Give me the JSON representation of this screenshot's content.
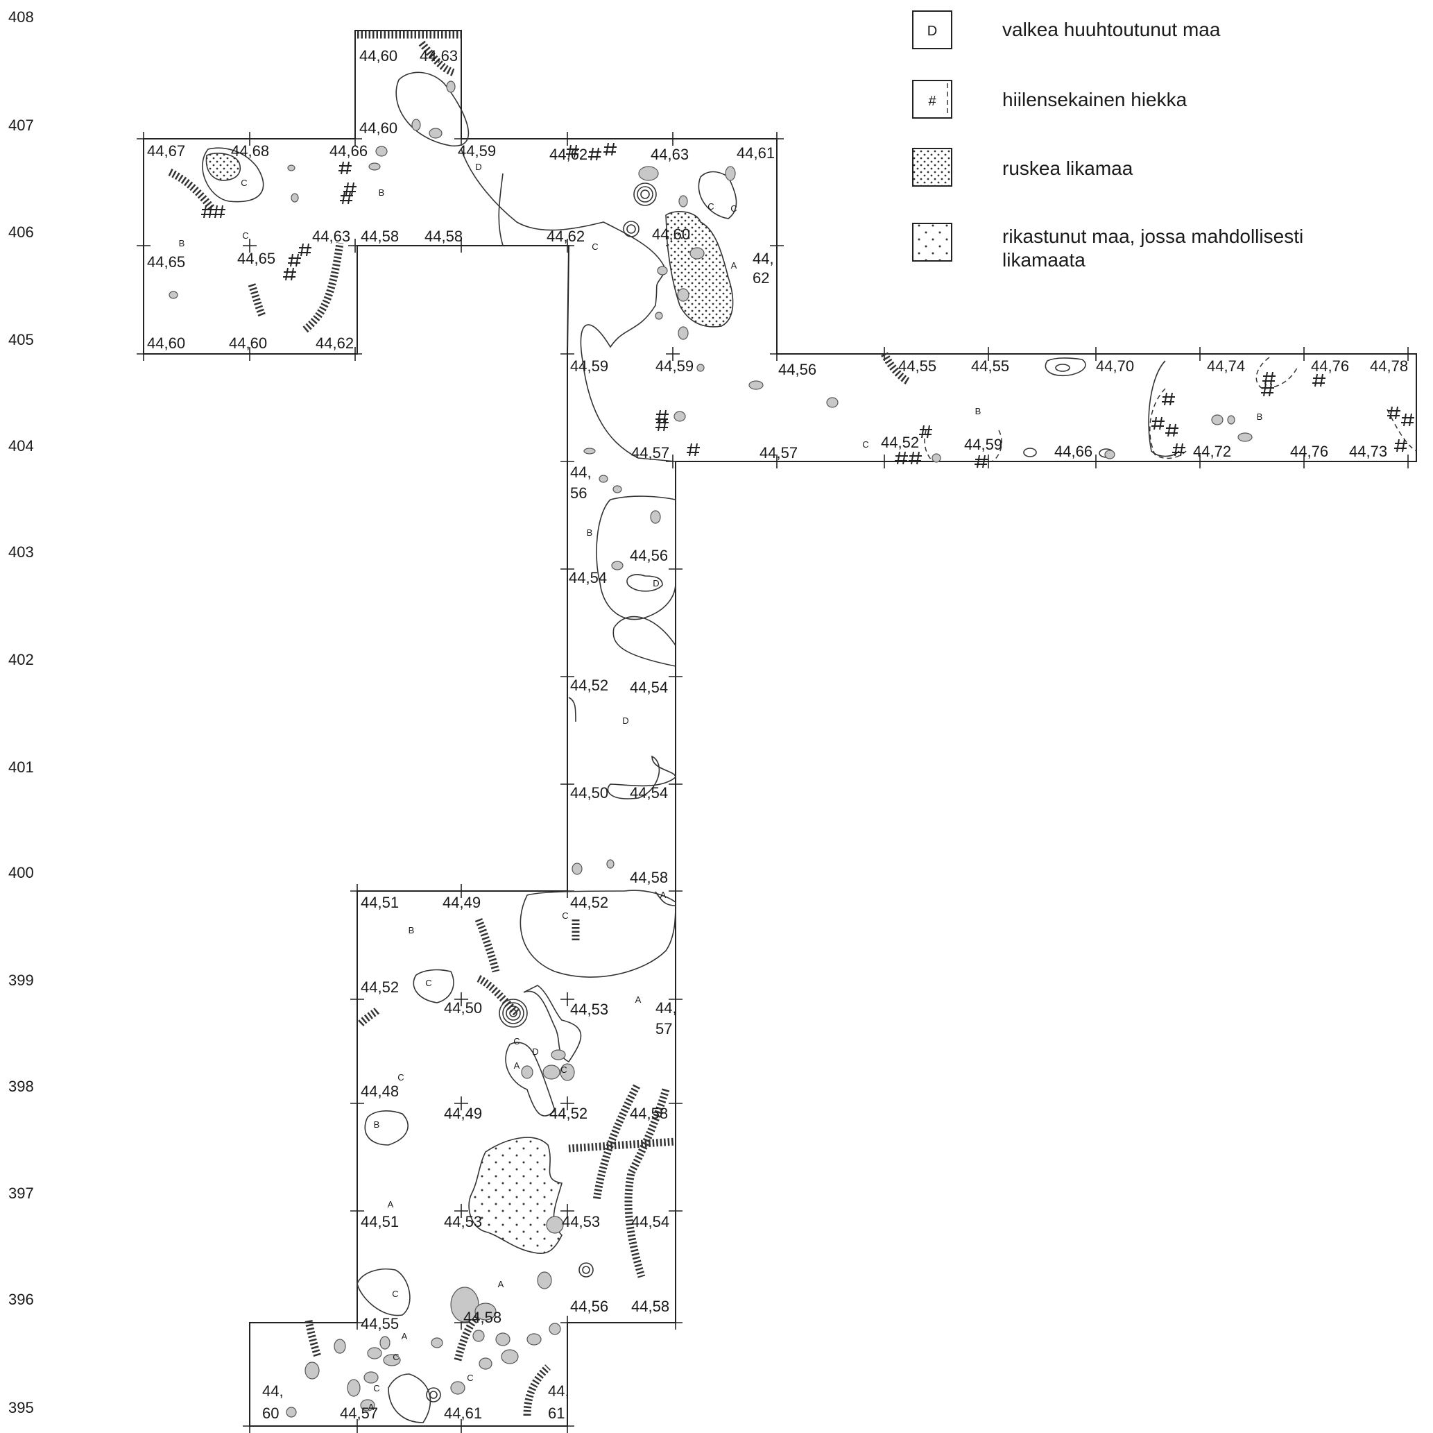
{
  "legend": {
    "items": [
      {
        "symbol": "D",
        "label": "valkea huuhtoutunut maa",
        "swatch": "box-letter"
      },
      {
        "symbol": "#",
        "label": "hiilensekainen hiekka",
        "swatch": "box-hash"
      },
      {
        "symbol": "",
        "label": "ruskea likamaa",
        "swatch": "dense-dots"
      },
      {
        "symbol": "",
        "label": "rikastunut maa, jossa mahdollisesti likamaata",
        "swatch": "sparse-dots"
      }
    ]
  },
  "grid_rows": [
    "408",
    "407",
    "406",
    "405",
    "404",
    "403",
    "402",
    "401",
    "400",
    "399",
    "398",
    "397",
    "396",
    "395"
  ],
  "elevations": [
    "44,60",
    "44,63",
    "44,60",
    "44,67",
    "44,68",
    "44,66",
    "44,59",
    "44,62",
    "44,63",
    "44,61",
    "44,65",
    "44,65",
    "44,63",
    "44,58",
    "44,58",
    "44,62",
    "44,60",
    "44,",
    "62",
    "44,60",
    "44,60",
    "44,62",
    "44,59",
    "44,59",
    "44,56",
    "44,55",
    "44,55",
    "44,70",
    "44,74",
    "44,76",
    "44,78",
    "44,57",
    "44,57",
    "44,52",
    "44,59",
    "44,66",
    "44,72",
    "44,76",
    "44,73",
    "44,",
    "56",
    "44,56",
    "44,54",
    "44,52",
    "44,54",
    "44,50",
    "44,54",
    "44,58",
    "44,51",
    "44,49",
    "44,52",
    "44,52",
    "44,50",
    "44,53",
    "44,",
    "57",
    "44,48",
    "44,49",
    "44,52",
    "44,58",
    "44,51",
    "44,53",
    "44,53",
    "44,54",
    "44,56",
    "44,58",
    "44,55",
    "44,58",
    "44,",
    "60",
    "44,57",
    "44,61",
    "44,",
    "61"
  ],
  "soil_labels": [
    "D",
    "C",
    "B",
    "C",
    "B",
    "C",
    "C",
    "A",
    "C",
    "B",
    "B",
    "C",
    "D",
    "D",
    "B",
    "A",
    "C",
    "B",
    "C",
    "A",
    "C",
    "D",
    "A",
    "C",
    "C",
    "A",
    "B",
    "C",
    "A",
    "A",
    "C",
    "A",
    "C",
    "C"
  ]
}
